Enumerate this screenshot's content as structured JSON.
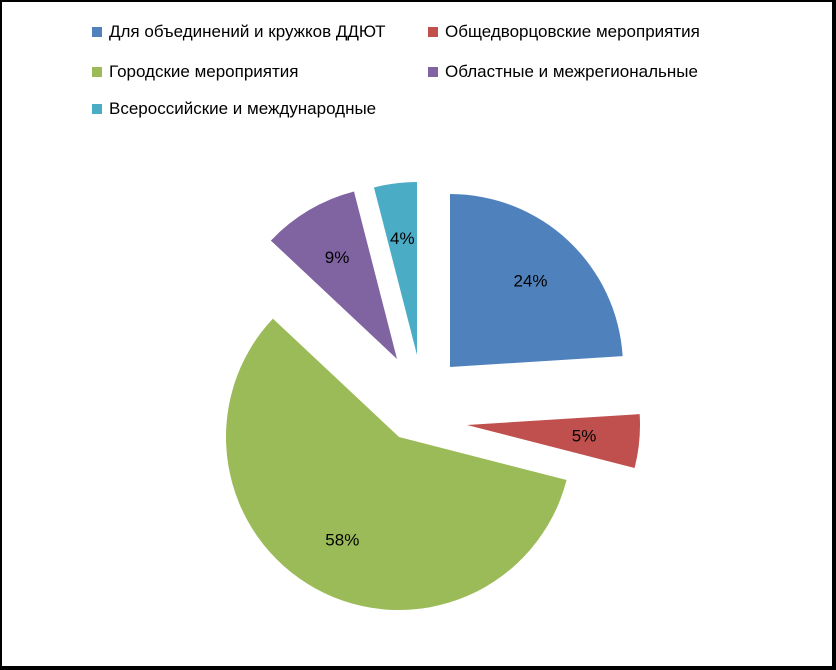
{
  "chart_data": {
    "type": "pie",
    "categories": [
      "Для объединений  и кружков ДДЮТ",
      "Общедворцовские мероприятия",
      "Городские мероприятия",
      "Областные и межрегиональные",
      "Всероссийские и международные"
    ],
    "values": [
      24,
      5,
      58,
      9,
      4
    ],
    "data_labels": [
      "24%",
      "5%",
      "58%",
      "9%",
      "4%"
    ],
    "colors": [
      "#4F81BD",
      "#C0504D",
      "#9BBB59",
      "#8064A2",
      "#4BACC6"
    ],
    "exploded": true,
    "legend_position": "top"
  }
}
